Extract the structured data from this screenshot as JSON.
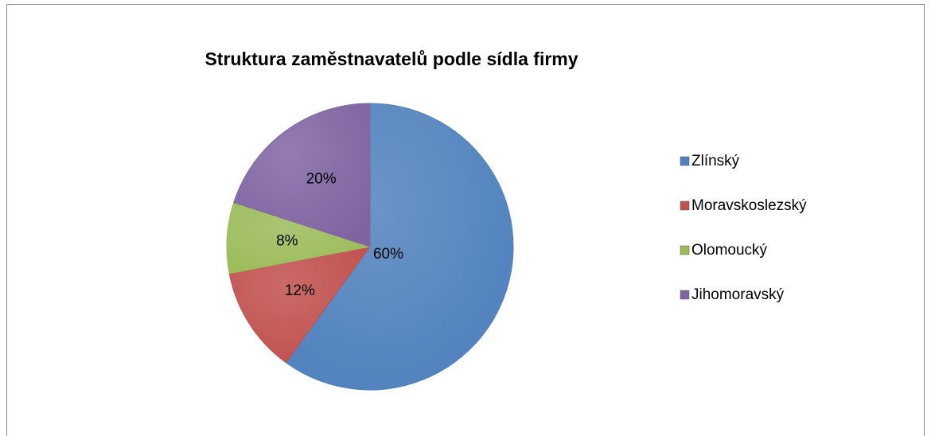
{
  "chart_data": {
    "type": "pie",
    "title": "Struktura zaměstnavatelů podle sídla firmy",
    "categories": [
      "Zlínský",
      "Moravskoslezský",
      "Olomoucký",
      "Jihomoravský"
    ],
    "values": [
      60,
      12,
      8,
      20
    ],
    "value_labels": [
      "60%",
      "12%",
      "8%",
      "20%"
    ],
    "colors": [
      "#4f81bd",
      "#c0504d",
      "#9bbb59",
      "#8064a2"
    ],
    "legend": "right"
  }
}
